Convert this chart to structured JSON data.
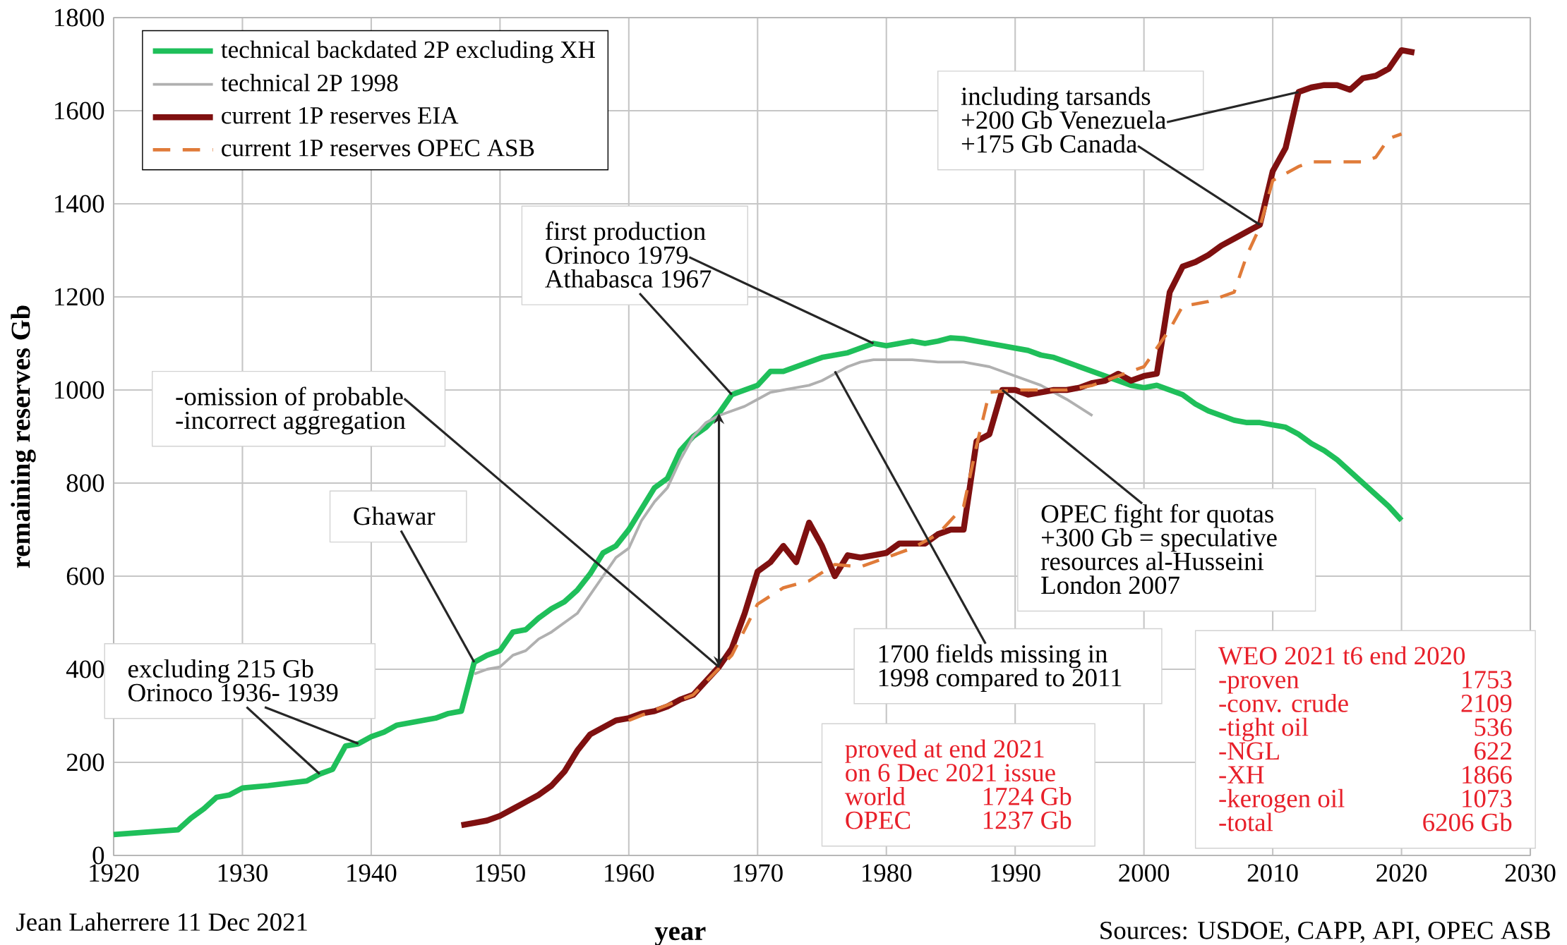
{
  "chart_data": {
    "type": "line",
    "xlabel": "year",
    "ylabel": "remaining reserves Gb",
    "xlim": [
      1920,
      2030
    ],
    "ylim": [
      0,
      1800
    ],
    "xticks": [
      1920,
      1930,
      1940,
      1950,
      1960,
      1970,
      1980,
      1990,
      2000,
      2010,
      2020,
      2030
    ],
    "yticks": [
      0,
      200,
      400,
      600,
      800,
      1000,
      1200,
      1400,
      1600,
      1800
    ],
    "grid": true,
    "legend": "top left",
    "series": [
      {
        "name": "technical backdated 2P excluding XH",
        "color": "#1fbf5a",
        "line_style": "solid",
        "x": [
          1920,
          1925,
          1926,
          1927,
          1928,
          1929,
          1930,
          1932,
          1935,
          1936,
          1937,
          1938,
          1939,
          1940,
          1941,
          1942,
          1945,
          1946,
          1947,
          1948,
          1949,
          1950,
          1951,
          1952,
          1953,
          1954,
          1955,
          1956,
          1957,
          1958,
          1959,
          1960,
          1961,
          1962,
          1963,
          1964,
          1965,
          1966,
          1967,
          1968,
          1969,
          1970,
          1971,
          1972,
          1973,
          1974,
          1975,
          1976,
          1977,
          1978,
          1979,
          1980,
          1981,
          1982,
          1983,
          1984,
          1985,
          1986,
          1987,
          1988,
          1989,
          1990,
          1991,
          1992,
          1993,
          1994,
          1995,
          1996,
          1997,
          1998,
          1999,
          2000,
          2001,
          2002,
          2003,
          2004,
          2005,
          2006,
          2007,
          2008,
          2009,
          2010,
          2011,
          2012,
          2013,
          2014,
          2015,
          2016,
          2017,
          2018,
          2019,
          2020
        ],
        "values": [
          45,
          55,
          80,
          100,
          125,
          130,
          145,
          150,
          160,
          175,
          185,
          235,
          240,
          255,
          265,
          280,
          295,
          305,
          310,
          415,
          430,
          440,
          480,
          485,
          510,
          530,
          545,
          570,
          605,
          650,
          665,
          700,
          745,
          790,
          810,
          870,
          900,
          920,
          950,
          990,
          1000,
          1010,
          1040,
          1040,
          1050,
          1060,
          1070,
          1075,
          1080,
          1090,
          1100,
          1095,
          1100,
          1105,
          1100,
          1105,
          1112,
          1110,
          1105,
          1100,
          1095,
          1090,
          1085,
          1075,
          1070,
          1060,
          1050,
          1040,
          1030,
          1020,
          1010,
          1005,
          1010,
          1000,
          990,
          970,
          955,
          945,
          935,
          930,
          930,
          925,
          920,
          905,
          885,
          870,
          850,
          825,
          800,
          775,
          750,
          720
        ]
      },
      {
        "name": "technical 2P 1998",
        "color": "#b0b0b0",
        "line_style": "solid",
        "x": [
          1948,
          1949,
          1950,
          1951,
          1952,
          1953,
          1954,
          1955,
          1956,
          1957,
          1958,
          1959,
          1960,
          1961,
          1962,
          1963,
          1964,
          1965,
          1966,
          1967,
          1968,
          1969,
          1970,
          1971,
          1972,
          1973,
          1974,
          1975,
          1976,
          1977,
          1978,
          1979,
          1980,
          1982,
          1984,
          1986,
          1988,
          1990,
          1992,
          1994,
          1996
        ],
        "values": [
          390,
          400,
          405,
          430,
          440,
          465,
          480,
          500,
          520,
          560,
          600,
          640,
          660,
          720,
          760,
          790,
          850,
          900,
          930,
          945,
          955,
          965,
          980,
          995,
          1000,
          1005,
          1010,
          1020,
          1035,
          1050,
          1060,
          1065,
          1065,
          1065,
          1060,
          1060,
          1050,
          1030,
          1010,
          980,
          945
        ]
      },
      {
        "name": "current 1P reserves EIA",
        "color": "#7f1010",
        "line_style": "solid",
        "x": [
          1947,
          1948,
          1949,
          1950,
          1951,
          1952,
          1953,
          1954,
          1955,
          1956,
          1957,
          1958,
          1959,
          1960,
          1961,
          1962,
          1963,
          1964,
          1965,
          1966,
          1967,
          1968,
          1969,
          1970,
          1971,
          1972,
          1973,
          1974,
          1975,
          1976,
          1977,
          1978,
          1979,
          1980,
          1981,
          1982,
          1983,
          1984,
          1985,
          1986,
          1987,
          1988,
          1989,
          1990,
          1991,
          1992,
          1993,
          1994,
          1995,
          1996,
          1997,
          1998,
          1999,
          2000,
          2001,
          2002,
          2003,
          2004,
          2005,
          2006,
          2007,
          2008,
          2009,
          2010,
          2011,
          2012,
          2013,
          2014,
          2015,
          2016,
          2017,
          2018,
          2019,
          2020,
          2021
        ],
        "values": [
          65,
          70,
          75,
          85,
          100,
          115,
          130,
          150,
          180,
          225,
          260,
          275,
          290,
          295,
          305,
          310,
          320,
          335,
          345,
          375,
          405,
          445,
          520,
          610,
          630,
          665,
          630,
          715,
          665,
          600,
          645,
          640,
          645,
          650,
          670,
          670,
          670,
          690,
          700,
          700,
          890,
          905,
          1000,
          1000,
          990,
          995,
          1000,
          1000,
          1005,
          1015,
          1020,
          1035,
          1020,
          1030,
          1035,
          1210,
          1265,
          1275,
          1290,
          1310,
          1325,
          1340,
          1355,
          1470,
          1520,
          1640,
          1650,
          1655,
          1655,
          1645,
          1670,
          1675,
          1690,
          1730,
          1725
        ]
      },
      {
        "name": "current 1P reserves OPEC ASB",
        "color": "#e07b39",
        "line_style": "dashed",
        "x": [
          1960,
          1965,
          1968,
          1970,
          1972,
          1974,
          1976,
          1978,
          1980,
          1982,
          1984,
          1986,
          1987,
          1988,
          1990,
          1992,
          1994,
          1996,
          1998,
          2000,
          2002,
          2003,
          2005,
          2007,
          2008,
          2009,
          2010,
          2011,
          2012,
          2013,
          2015,
          2017,
          2018,
          2019,
          2020
        ],
        "values": [
          290,
          345,
          430,
          540,
          575,
          590,
          625,
          620,
          640,
          660,
          690,
          750,
          880,
          995,
          1000,
          1000,
          1000,
          1010,
          1030,
          1050,
          1130,
          1180,
          1190,
          1210,
          1290,
          1350,
          1450,
          1465,
          1480,
          1490,
          1490,
          1490,
          1500,
          1540,
          1550
        ]
      }
    ],
    "annotations": [
      {
        "text": "excluding 215 Gb",
        "x": 1939,
        "y": 240
      },
      {
        "text": "Orinoco  1936- 1939",
        "x": 1936,
        "y": 175
      },
      {
        "text": "Ghawar",
        "x": 1948,
        "y": 415
      },
      {
        "text": "-omission of probable",
        "x": 1967,
        "y": 405
      },
      "-incorrect aggregation",
      "first production",
      {
        "text": "Orinoco 1979",
        "x": 1979,
        "y": 1100
      },
      {
        "text": "Athabasca 1967",
        "x": 1968,
        "y": 990
      },
      "including tarsands",
      {
        "text": "+200 Gb Venezuela",
        "x": 2012,
        "y": 1640
      },
      {
        "text": "+175 Gb Canada",
        "x": 2009,
        "y": 1355
      },
      {
        "text": "OPEC fight for quotas",
        "x": 1989,
        "y": 1000
      },
      "+300 Gb = speculative",
      "resources al-Husseini",
      "London 2007",
      {
        "text": "1700 fields missing in",
        "x": 1976,
        "y": 1040
      },
      "1998  compared to 2011",
      "proved at end 2021",
      "on 6 Dec 2021 issue",
      "world",
      "1724 Gb",
      "OPEC",
      "1237 Gb",
      "WEO 2021 t6 end 2020",
      "-proven",
      "1753",
      "-conv. crude",
      "2109",
      "-tight oil",
      "536",
      "-NGL",
      "622",
      "-XH",
      "1866",
      "-kerogen oil",
      "1073",
      "-total",
      "6206 Gb",
      "Jean Laherrere 11 Dec 2021",
      "Sources: USDOE, CAPP, API, OPEC ASB"
    ]
  }
}
